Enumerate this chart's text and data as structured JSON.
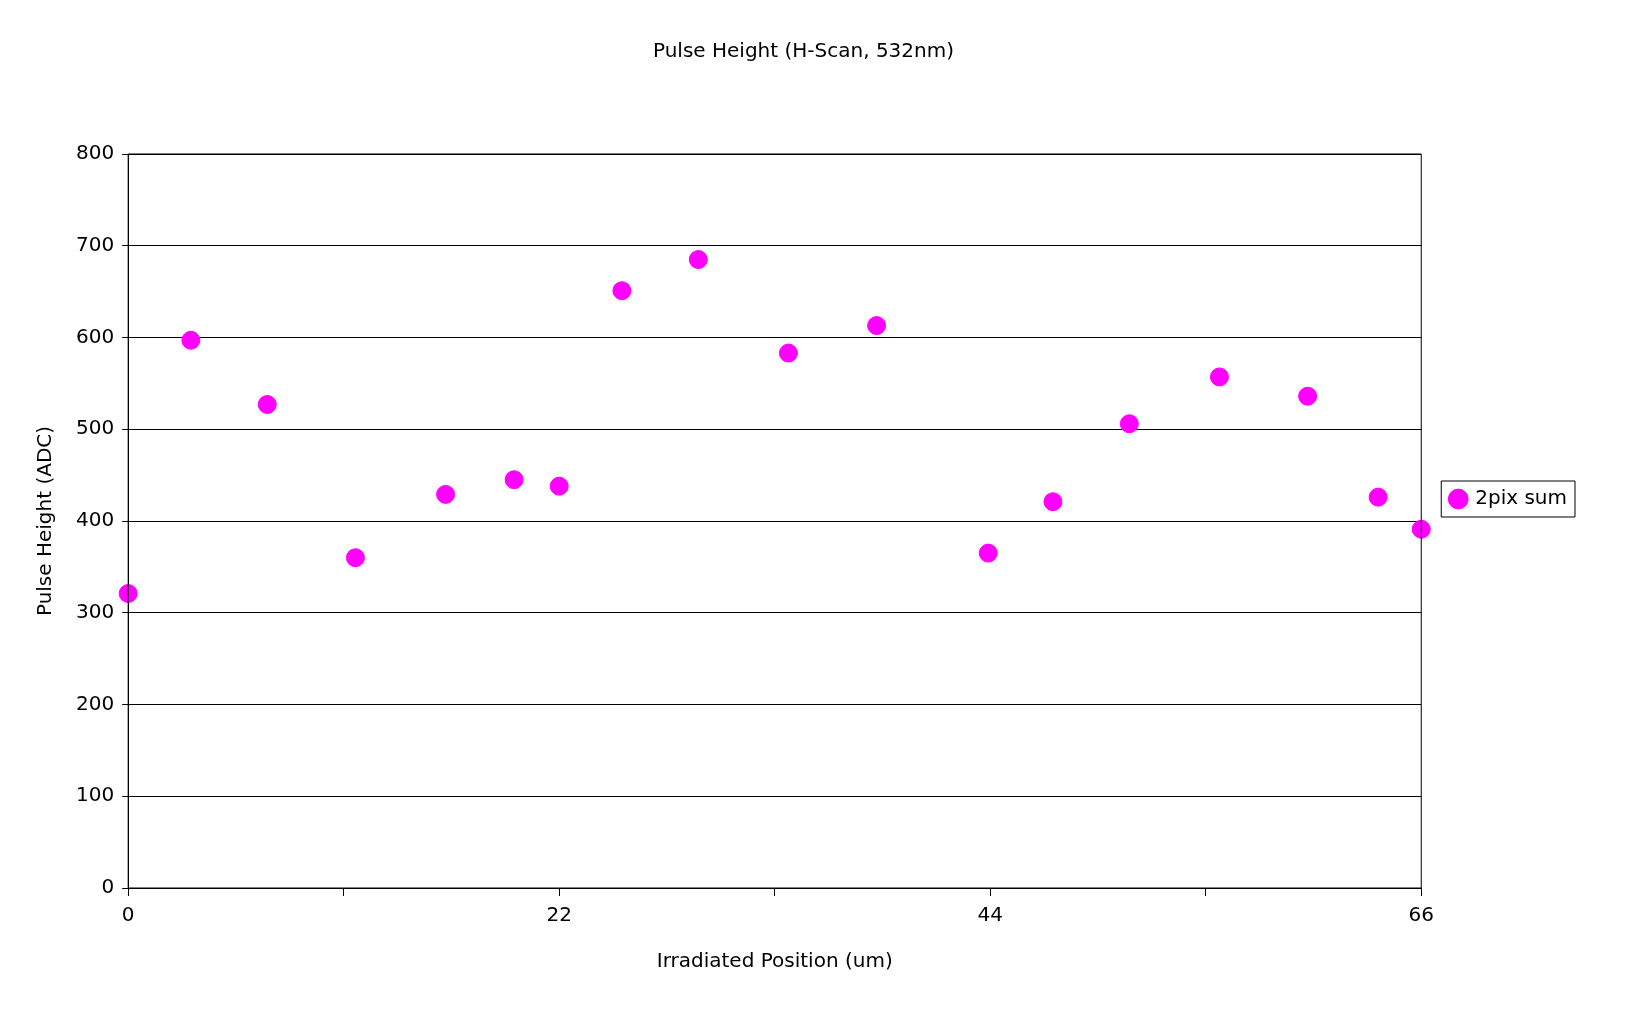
{
  "chart_data": {
    "type": "scatter",
    "title": "Pulse Height (H-Scan, 532nm)",
    "xlabel": "Irradiated Position (um)",
    "ylabel": "Pulse Height (ADC)",
    "x": [
      0,
      3.2,
      7.1,
      11.6,
      16.2,
      19.7,
      22,
      25.2,
      29.1,
      33.7,
      38.2,
      43.9,
      47.2,
      51.1,
      55.7,
      60.2,
      63.8,
      66
    ],
    "series": [
      {
        "name": "2pix sum",
        "color": "#ff00ff",
        "values": [
          321,
          597,
          527,
          360,
          429,
          445,
          438,
          651,
          685,
          583,
          613,
          365,
          421,
          506,
          557,
          536,
          426,
          391
        ]
      }
    ],
    "xlim": [
      0,
      66
    ],
    "xticks": [
      0,
      {
        "value": 11,
        "label": null
      },
      22,
      {
        "value": 33,
        "label": null
      },
      44,
      {
        "value": 55,
        "label": null
      },
      66
    ],
    "ylim": [
      0,
      800
    ],
    "yticks": [
      0,
      100,
      200,
      300,
      400,
      500,
      600,
      700,
      800
    ],
    "grid": "y",
    "legend": "right",
    "marker": "circle"
  }
}
